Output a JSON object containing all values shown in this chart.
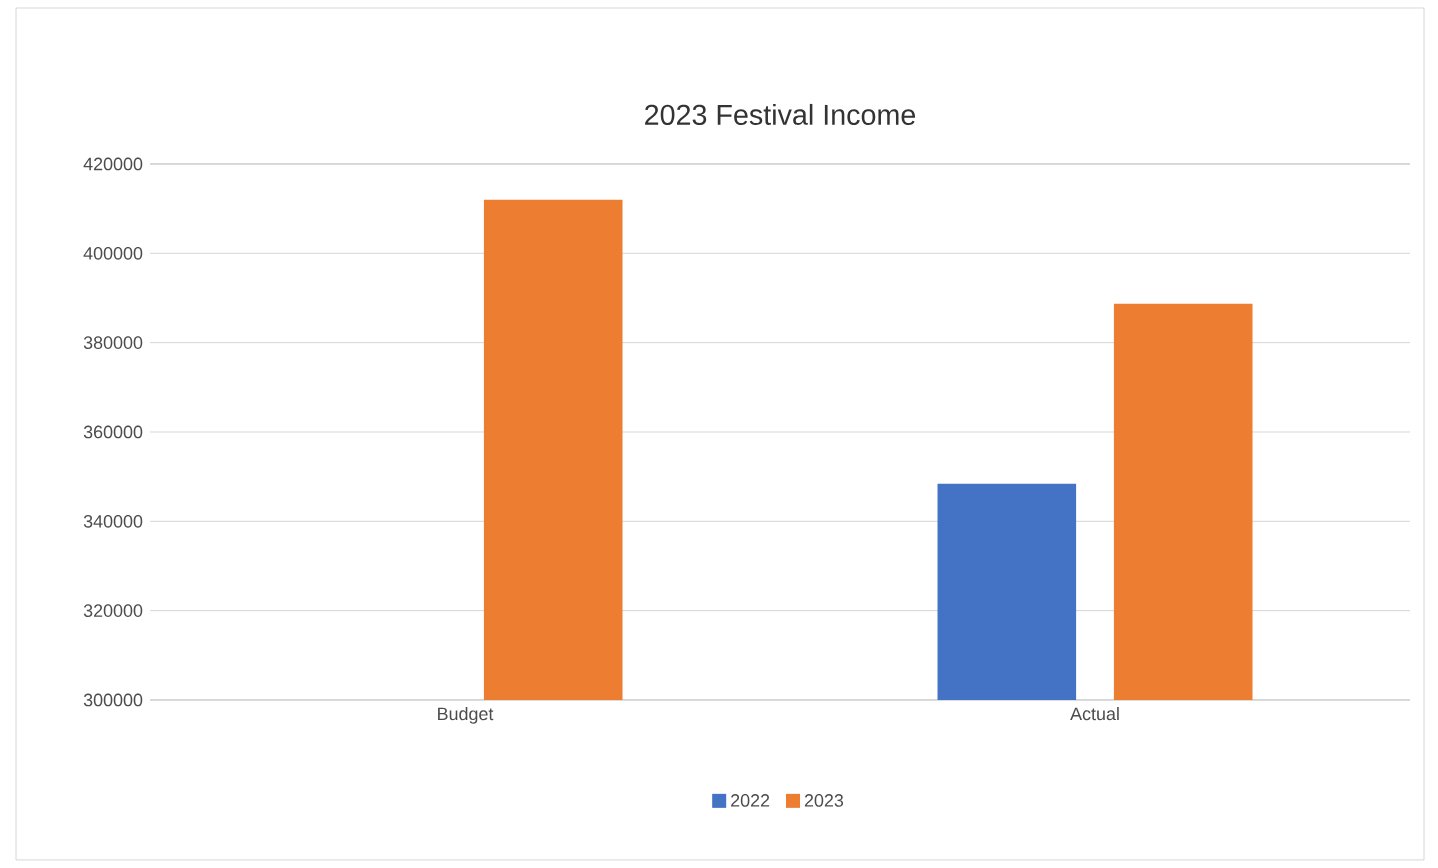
{
  "chart_data": {
    "type": "bar",
    "title": "2023 Festival Income",
    "categories": [
      "Budget",
      "Actual"
    ],
    "series": [
      {
        "name": "2022",
        "color": "#4472c4",
        "values": [
          null,
          348400
        ]
      },
      {
        "name": "2023",
        "color": "#ed7d31",
        "values": [
          412000,
          388700
        ]
      }
    ],
    "ylim": [
      300000,
      420000
    ],
    "yticks": [
      300000,
      320000,
      340000,
      360000,
      380000,
      400000,
      420000
    ],
    "grid": "y",
    "legend": "bottom"
  }
}
